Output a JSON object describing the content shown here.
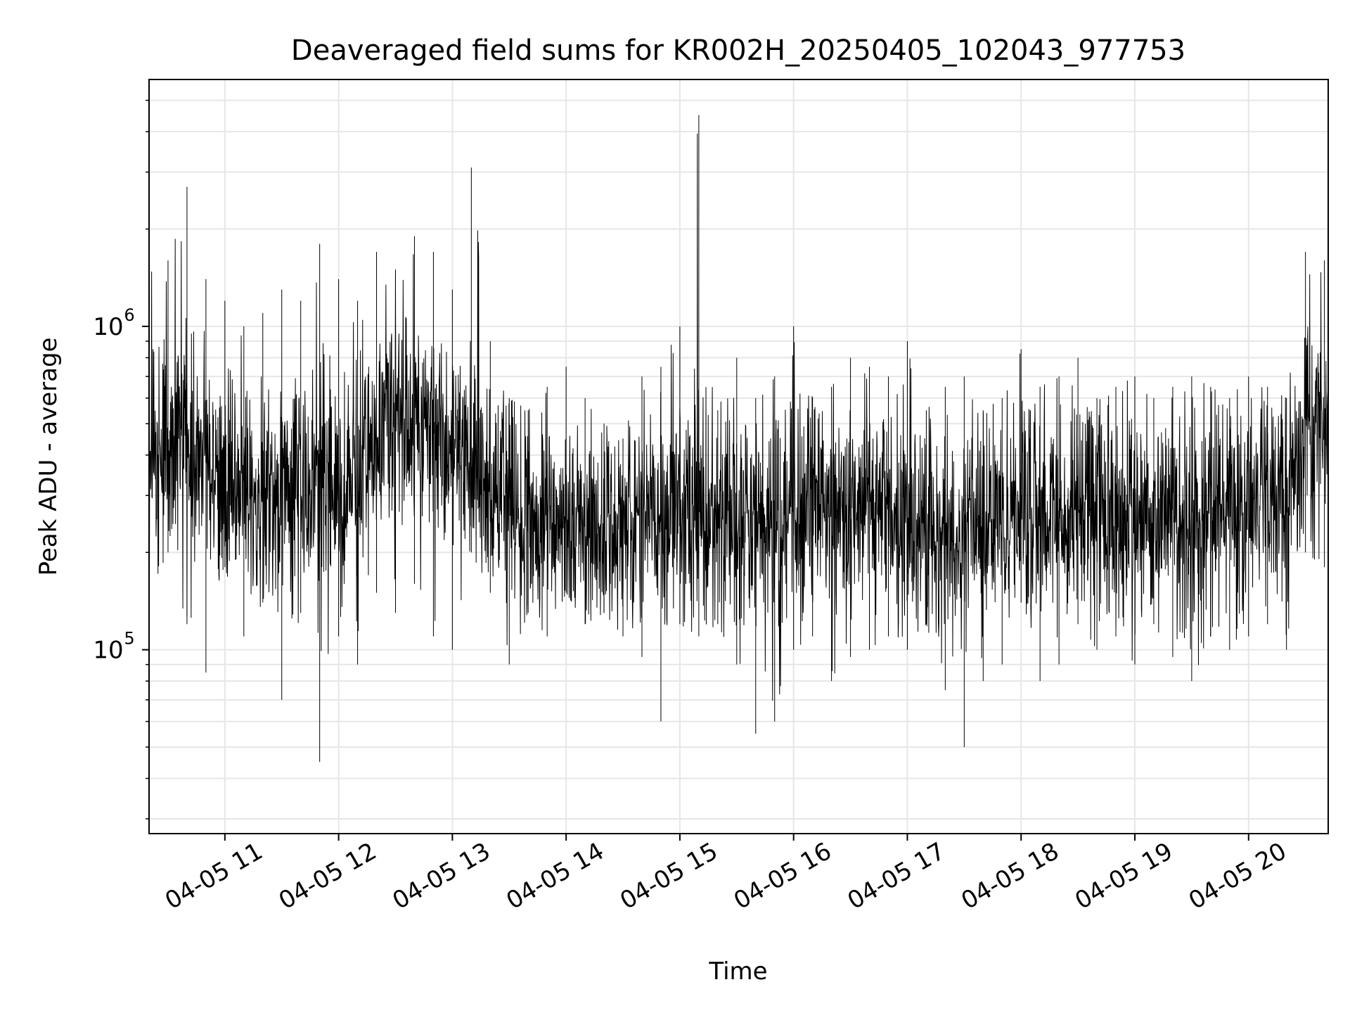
{
  "chart_data": {
    "type": "line",
    "title": "Deaveraged field sums for KR002H_20250405_102043_977753",
    "xlabel": "Time",
    "ylabel": "Peak ADU - average",
    "yscale": "log",
    "xlim": [
      "2025-04-05 10:20",
      "2025-04-05 20:42"
    ],
    "ylim": [
      27000,
      5800000
    ],
    "grid": "on (major and minor, light gray)",
    "line_color": "#000000",
    "x_ticks": [
      "2025-04-05 11:00",
      "2025-04-05 12:00",
      "2025-04-05 13:00",
      "2025-04-05 14:00",
      "2025-04-05 15:00",
      "2025-04-05 16:00",
      "2025-04-05 17:00",
      "2025-04-05 18:00",
      "2025-04-05 19:00",
      "2025-04-05 20:00"
    ],
    "x_tick_labels": [
      "04-05 11",
      "04-05 12",
      "04-05 13",
      "04-05 14",
      "04-05 15",
      "04-05 16",
      "04-05 17",
      "04-05 18",
      "04-05 19",
      "04-05 20"
    ],
    "y_ticks": [
      {
        "value": 100000,
        "base": "10",
        "exp": "5"
      },
      {
        "value": 1000000,
        "base": "10",
        "exp": "6"
      }
    ],
    "series": [
      {
        "values_description_note_free": true,
        "x": [
          "2025-04-05 10:20",
          "2025-04-05 10:30",
          "2025-04-05 10:40",
          "2025-04-05 10:50",
          "2025-04-05 11:00",
          "2025-04-05 11:10",
          "2025-04-05 11:20",
          "2025-04-05 11:30",
          "2025-04-05 11:40",
          "2025-04-05 11:50",
          "2025-04-05 12:00",
          "2025-04-05 12:10",
          "2025-04-05 12:20",
          "2025-04-05 12:30",
          "2025-04-05 12:40",
          "2025-04-05 12:50",
          "2025-04-05 13:00",
          "2025-04-05 13:10",
          "2025-04-05 13:20",
          "2025-04-05 13:30",
          "2025-04-05 13:40",
          "2025-04-05 13:50",
          "2025-04-05 14:00",
          "2025-04-05 14:10",
          "2025-04-05 14:20",
          "2025-04-05 14:30",
          "2025-04-05 14:40",
          "2025-04-05 14:50",
          "2025-04-05 15:00",
          "2025-04-05 15:10",
          "2025-04-05 15:20",
          "2025-04-05 15:30",
          "2025-04-05 15:40",
          "2025-04-05 15:50",
          "2025-04-05 16:00",
          "2025-04-05 16:10",
          "2025-04-05 16:20",
          "2025-04-05 16:30",
          "2025-04-05 16:40",
          "2025-04-05 16:50",
          "2025-04-05 17:00",
          "2025-04-05 17:10",
          "2025-04-05 17:20",
          "2025-04-05 17:30",
          "2025-04-05 17:40",
          "2025-04-05 17:50",
          "2025-04-05 18:00",
          "2025-04-05 18:10",
          "2025-04-05 18:20",
          "2025-04-05 18:30",
          "2025-04-05 18:40",
          "2025-04-05 18:50",
          "2025-04-05 19:00",
          "2025-04-05 19:10",
          "2025-04-05 19:20",
          "2025-04-05 19:30",
          "2025-04-05 19:40",
          "2025-04-05 19:50",
          "2025-04-05 20:00",
          "2025-04-05 20:10",
          "2025-04-05 20:20",
          "2025-04-05 20:30",
          "2025-04-05 20:40"
        ],
        "y_low": [
          150000,
          200000,
          120000,
          85000,
          180000,
          110000,
          140000,
          70000,
          130000,
          45000,
          110000,
          90000,
          150000,
          130000,
          160000,
          110000,
          100000,
          200000,
          150000,
          90000,
          130000,
          110000,
          150000,
          120000,
          130000,
          110000,
          95000,
          60000,
          120000,
          110000,
          120000,
          90000,
          55000,
          60000,
          100000,
          110000,
          80000,
          95000,
          100000,
          110000,
          100000,
          120000,
          75000,
          50000,
          80000,
          90000,
          140000,
          80000,
          90000,
          120000,
          100000,
          110000,
          90000,
          120000,
          95000,
          80000,
          110000,
          100000,
          110000,
          120000,
          100000,
          200000,
          180000
        ],
        "y_high": [
          1700000,
          1600000,
          2700000,
          1400000,
          1200000,
          1000000,
          1100000,
          1300000,
          1200000,
          1800000,
          1400000,
          1200000,
          1700000,
          1500000,
          1900000,
          1700000,
          1300000,
          3100000,
          900000,
          600000,
          550000,
          650000,
          750000,
          600000,
          500000,
          450000,
          700000,
          750000,
          1000000,
          4500000,
          550000,
          800000,
          600000,
          700000,
          1000000,
          600000,
          650000,
          800000,
          750000,
          700000,
          900000,
          550000,
          650000,
          700000,
          550000,
          600000,
          850000,
          650000,
          700000,
          800000,
          600000,
          650000,
          700000,
          600000,
          650000,
          700000,
          650000,
          600000,
          700000,
          650000,
          600000,
          1700000,
          1600000
        ],
        "y_typical": [
          380000,
          420000,
          400000,
          360000,
          330000,
          320000,
          300000,
          330000,
          350000,
          340000,
          330000,
          360000,
          450000,
          520000,
          500000,
          450000,
          420000,
          400000,
          300000,
          270000,
          260000,
          250000,
          240000,
          230000,
          230000,
          240000,
          250000,
          270000,
          260000,
          270000,
          260000,
          250000,
          260000,
          250000,
          270000,
          280000,
          270000,
          270000,
          270000,
          260000,
          250000,
          240000,
          230000,
          230000,
          240000,
          250000,
          260000,
          260000,
          270000,
          270000,
          280000,
          270000,
          280000,
          280000,
          280000,
          270000,
          270000,
          270000,
          270000,
          280000,
          280000,
          450000,
          500000
        ]
      }
    ]
  }
}
